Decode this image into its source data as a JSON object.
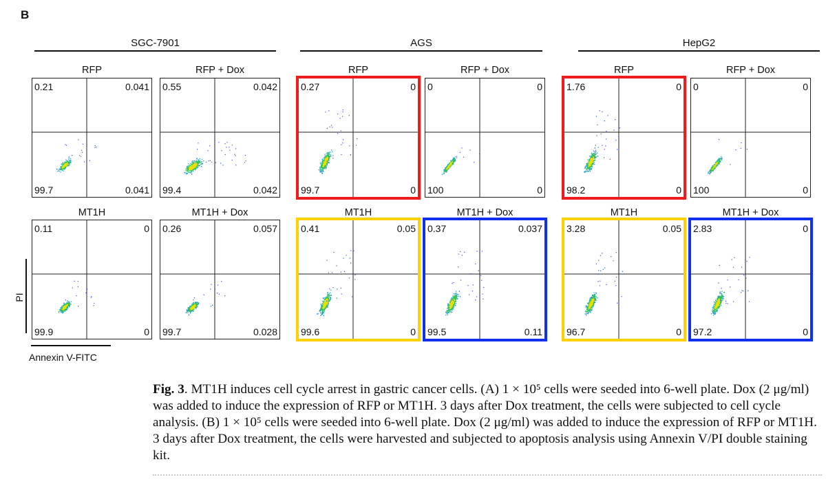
{
  "panel_label": "B",
  "axes": {
    "y_label": "PI",
    "x_label": "Annexin V-FITC"
  },
  "highlight_colors": {
    "red": "#ee1c1c",
    "yellow": "#ffd000",
    "blue": "#1030ee"
  },
  "groups": [
    {
      "title": "SGC-7901",
      "plots": [
        {
          "title": "RFP",
          "quadrants": {
            "ul": "0.21",
            "ur": "0.041",
            "ll": "99.7",
            "lr": "0.041"
          },
          "highlight": "",
          "cloud": "diag"
        },
        {
          "title": "RFP + Dox",
          "quadrants": {
            "ul": "0.55",
            "ur": "0.042",
            "ll": "99.4",
            "lr": "0.042"
          },
          "highlight": "",
          "cloud": "spread"
        },
        {
          "title": "MT1H",
          "quadrants": {
            "ul": "0.11",
            "ur": "0",
            "ll": "99.9",
            "lr": "0"
          },
          "highlight": "",
          "cloud": "diag"
        },
        {
          "title": "MT1H + Dox",
          "quadrants": {
            "ul": "0.26",
            "ur": "0.057",
            "ll": "99.7",
            "lr": "0.028"
          },
          "highlight": "",
          "cloud": "diag"
        }
      ]
    },
    {
      "title": "AGS",
      "plots": [
        {
          "title": "RFP",
          "quadrants": {
            "ul": "0.27",
            "ur": "0",
            "ll": "99.7",
            "lr": "0"
          },
          "highlight": "red",
          "cloud": "tall"
        },
        {
          "title": "RFP + Dox",
          "quadrants": {
            "ul": "0",
            "ur": "0",
            "ll": "100",
            "lr": "0"
          },
          "highlight": "",
          "cloud": "narrow"
        },
        {
          "title": "MT1H",
          "quadrants": {
            "ul": "0.41",
            "ur": "0.05",
            "ll": "99.6",
            "lr": "0"
          },
          "highlight": "yellow",
          "cloud": "tall"
        },
        {
          "title": "MT1H + Dox",
          "quadrants": {
            "ul": "0.37",
            "ur": "0.037",
            "ll": "99.5",
            "lr": "0.11"
          },
          "highlight": "blue",
          "cloud": "tall"
        }
      ]
    },
    {
      "title": "HepG2",
      "plots": [
        {
          "title": "RFP",
          "quadrants": {
            "ul": "1.76",
            "ur": "0",
            "ll": "98.2",
            "lr": "0"
          },
          "highlight": "red",
          "cloud": "tall"
        },
        {
          "title": "RFP + Dox",
          "quadrants": {
            "ul": "0",
            "ur": "0",
            "ll": "100",
            "lr": "0"
          },
          "highlight": "",
          "cloud": "narrow"
        },
        {
          "title": "MT1H",
          "quadrants": {
            "ul": "3.28",
            "ur": "0.05",
            "ll": "96.7",
            "lr": "0"
          },
          "highlight": "yellow",
          "cloud": "tall"
        },
        {
          "title": "MT1H + Dox",
          "quadrants": {
            "ul": "2.83",
            "ur": "0",
            "ll": "97.2",
            "lr": "0"
          },
          "highlight": "blue",
          "cloud": "tall"
        }
      ]
    }
  ],
  "caption": {
    "label": "Fig. 3",
    "text": ".  MT1H induces cell cycle arrest in gastric cancer cells. (A) 1 × 10⁵ cells were seeded into 6-well plate. Dox (2 μg/ml) was added to induce the expression of RFP or MT1H. 3 days after Dox treatment, the cells were subjected to cell cycle analysis. (B) 1 × 10⁵ cells were seeded into 6-well plate. Dox (2 μg/ml) was added to induce the expression of RFP or MT1H. 3 days after Dox treatment, the cells were harvested and subjected to apoptosis analysis using Annexin V/PI double staining kit."
  }
}
